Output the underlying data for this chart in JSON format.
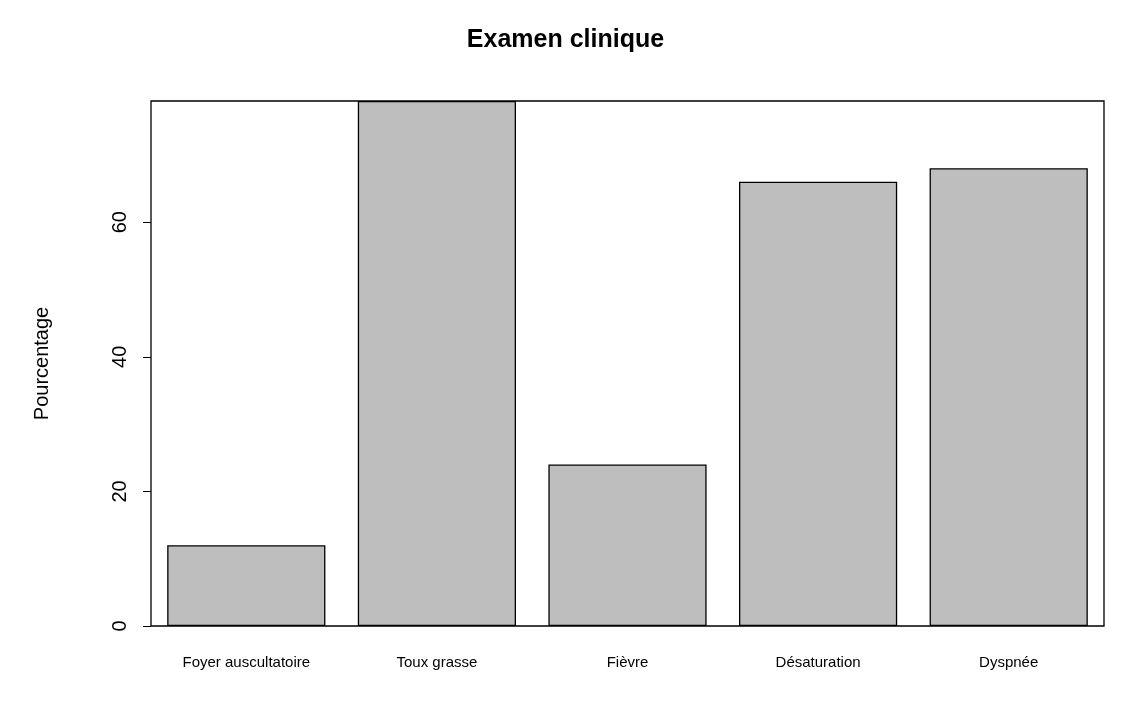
{
  "chart_data": {
    "type": "bar",
    "title": "Examen clinique",
    "ylabel": "Pourcentage",
    "categories": [
      "Foyer auscultatoire",
      "Toux grasse",
      "Fièvre",
      "Désaturation",
      "Dyspnée"
    ],
    "values": [
      12,
      78,
      24,
      66,
      68
    ],
    "color": "#bebebe",
    "ylim": [
      0,
      78
    ],
    "yticks": [
      0,
      20,
      40,
      60
    ]
  }
}
